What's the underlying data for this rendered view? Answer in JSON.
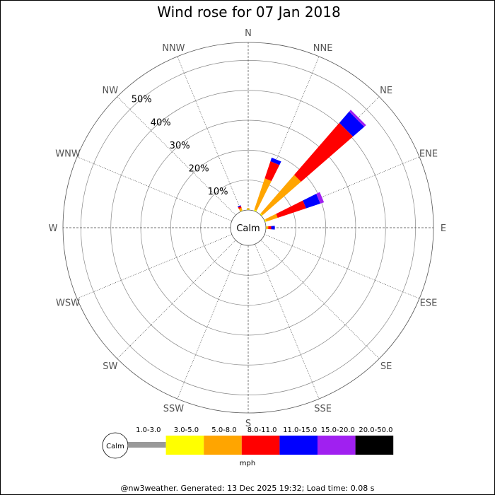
{
  "chart_data": {
    "type": "wind-rose",
    "title": "Wind rose for 07 Jan 2018",
    "directions": [
      "N",
      "NNE",
      "NE",
      "ENE",
      "E",
      "ESE",
      "SE",
      "SSE",
      "S",
      "SSW",
      "SW",
      "WSW",
      "W",
      "WNW",
      "NW",
      "NNW"
    ],
    "ring_labels": [
      "10%",
      "20%",
      "30%",
      "40%",
      "50%"
    ],
    "ring_values": [
      10,
      20,
      30,
      40,
      50
    ],
    "calm_label": "Calm",
    "unit": "mph",
    "speed_bins": [
      {
        "label": "1.0-3.0",
        "color": "#999999"
      },
      {
        "label": "3.0-5.0",
        "color": "#ffff00"
      },
      {
        "label": "5.0-8.0",
        "color": "#ffa500"
      },
      {
        "label": "8.0-11.0",
        "color": "#ff0000"
      },
      {
        "label": "11.0-15.0",
        "color": "#0000ff"
      },
      {
        "label": "15.0-20.0",
        "color": "#a020f0"
      },
      {
        "label": "20.0-50.0",
        "color": "#000000"
      }
    ],
    "series": [
      {
        "direction": "NNW",
        "values": [
          0,
          0.3,
          0.8,
          0.6,
          0.3,
          0,
          0
        ]
      },
      {
        "direction": "N",
        "values": [
          0,
          0.3,
          0.3,
          0,
          0,
          0,
          0
        ]
      },
      {
        "direction": "NNE",
        "values": [
          0,
          0.5,
          11,
          6,
          1.3,
          0,
          0
        ]
      },
      {
        "direction": "NE",
        "values": [
          0,
          0.5,
          17,
          23,
          5,
          0.8,
          0
        ]
      },
      {
        "direction": "ENE",
        "values": [
          0,
          0.5,
          4,
          10,
          5,
          1.3,
          0
        ]
      },
      {
        "direction": "E",
        "values": [
          0,
          0.3,
          0.5,
          1,
          1.2,
          0,
          0
        ]
      }
    ],
    "legend_placement": "bottom",
    "grid": true
  },
  "footer": "@nw3weather.  Generated: 13 Dec 2025 19:32; Load time: 0.08 s"
}
